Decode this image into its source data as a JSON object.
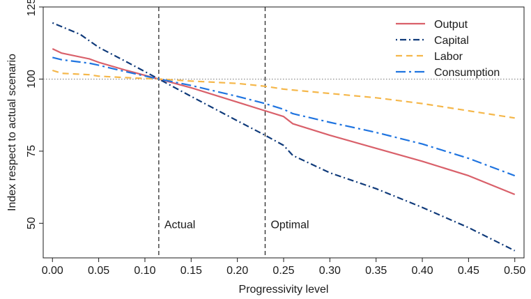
{
  "chart_data": {
    "type": "line",
    "title": "",
    "xlabel": "Progressivity level",
    "ylabel": "Index respect to actual scenario",
    "xlim": [
      -0.01,
      0.51
    ],
    "ylim": [
      38,
      125
    ],
    "x_ticks": [
      "0.00",
      "0.05",
      "0.10",
      "0.15",
      "0.20",
      "0.25",
      "0.30",
      "0.35",
      "0.40",
      "0.45",
      "0.50"
    ],
    "y_ticks": [
      "50",
      "75",
      "100",
      "125"
    ],
    "reference_line_y": 100,
    "legend_position": "top-right",
    "annotations": [
      {
        "label": "Actual",
        "x": 0.115
      },
      {
        "label": "Optimal",
        "x": 0.23
      }
    ],
    "series": [
      {
        "name": "Output",
        "color": "#d9606a",
        "style": "solid",
        "points": [
          [
            0.0,
            110.5
          ],
          [
            0.01,
            109.0
          ],
          [
            0.04,
            107.0
          ],
          [
            0.05,
            105.8
          ],
          [
            0.08,
            103.0
          ],
          [
            0.115,
            100.0
          ],
          [
            0.15,
            97.0
          ],
          [
            0.2,
            92.0
          ],
          [
            0.23,
            89.0
          ],
          [
            0.25,
            87.0
          ],
          [
            0.26,
            84.5
          ],
          [
            0.3,
            80.5
          ],
          [
            0.35,
            76.0
          ],
          [
            0.4,
            71.5
          ],
          [
            0.45,
            66.5
          ],
          [
            0.5,
            60.0
          ]
        ]
      },
      {
        "name": "Capital",
        "color": "#0f3a7a",
        "style": "dot-dash",
        "points": [
          [
            0.0,
            119.5
          ],
          [
            0.03,
            115.5
          ],
          [
            0.05,
            111.0
          ],
          [
            0.08,
            106.0
          ],
          [
            0.115,
            100.0
          ],
          [
            0.15,
            94.0
          ],
          [
            0.2,
            85.5
          ],
          [
            0.23,
            80.5
          ],
          [
            0.25,
            77.0
          ],
          [
            0.26,
            73.5
          ],
          [
            0.3,
            67.5
          ],
          [
            0.35,
            62.0
          ],
          [
            0.4,
            55.5
          ],
          [
            0.45,
            48.5
          ],
          [
            0.5,
            40.5
          ]
        ]
      },
      {
        "name": "Labor",
        "color": "#f5b74a",
        "style": "dashed",
        "points": [
          [
            0.0,
            103.0
          ],
          [
            0.01,
            102.0
          ],
          [
            0.04,
            101.5
          ],
          [
            0.05,
            101.0
          ],
          [
            0.08,
            100.5
          ],
          [
            0.115,
            100.0
          ],
          [
            0.15,
            99.3
          ],
          [
            0.2,
            98.5
          ],
          [
            0.23,
            97.5
          ],
          [
            0.25,
            96.5
          ],
          [
            0.3,
            95.0
          ],
          [
            0.35,
            93.5
          ],
          [
            0.4,
            91.5
          ],
          [
            0.45,
            89.0
          ],
          [
            0.5,
            86.5
          ]
        ]
      },
      {
        "name": "Consumption",
        "color": "#1f74e0",
        "style": "long-dash-dot",
        "points": [
          [
            0.0,
            107.5
          ],
          [
            0.01,
            106.7
          ],
          [
            0.04,
            105.5
          ],
          [
            0.05,
            104.8
          ],
          [
            0.08,
            102.5
          ],
          [
            0.115,
            100.0
          ],
          [
            0.15,
            97.8
          ],
          [
            0.2,
            94.0
          ],
          [
            0.23,
            91.5
          ],
          [
            0.25,
            89.5
          ],
          [
            0.26,
            88.0
          ],
          [
            0.3,
            85.0
          ],
          [
            0.35,
            81.5
          ],
          [
            0.4,
            77.5
          ],
          [
            0.45,
            72.5
          ],
          [
            0.5,
            66.5
          ]
        ]
      }
    ]
  }
}
